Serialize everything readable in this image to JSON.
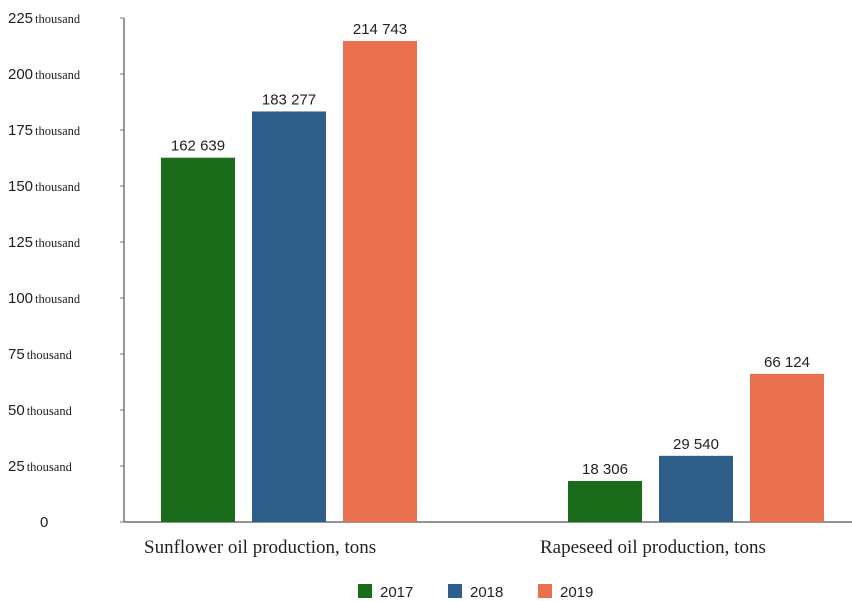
{
  "chart_data": {
    "type": "bar",
    "categories": [
      "Sunflower oil production, tons",
      "Rapeseed oil production, tons"
    ],
    "series": [
      {
        "name": "2017",
        "color": "#1a6b1a",
        "values": [
          162639,
          18306
        ],
        "labels": [
          "162 639",
          "18 306"
        ]
      },
      {
        "name": "2018",
        "color": "#2d5f8a",
        "values": [
          183277,
          29540
        ],
        "labels": [
          "183 277",
          "29 540"
        ]
      },
      {
        "name": "2019",
        "color": "#e8704f",
        "values": [
          214743,
          66124
        ],
        "labels": [
          "214 743",
          "66 124"
        ]
      }
    ],
    "ylim": [
      0,
      225000
    ],
    "yticks": [
      {
        "value": 0,
        "num": "0",
        "unit": ""
      },
      {
        "value": 25000,
        "num": "25",
        "unit": "thousand"
      },
      {
        "value": 50000,
        "num": "50",
        "unit": "thousand"
      },
      {
        "value": 75000,
        "num": "75",
        "unit": "thousand"
      },
      {
        "value": 100000,
        "num": "100",
        "unit": "thousand"
      },
      {
        "value": 125000,
        "num": "125",
        "unit": "thousand"
      },
      {
        "value": 150000,
        "num": "150",
        "unit": "thousand"
      },
      {
        "value": 175000,
        "num": "175",
        "unit": "thousand"
      },
      {
        "value": 200000,
        "num": "200",
        "unit": "thousand"
      },
      {
        "value": 225000,
        "num": "225",
        "unit": "thousand"
      }
    ],
    "legend_position": "bottom-center",
    "grid": false
  }
}
